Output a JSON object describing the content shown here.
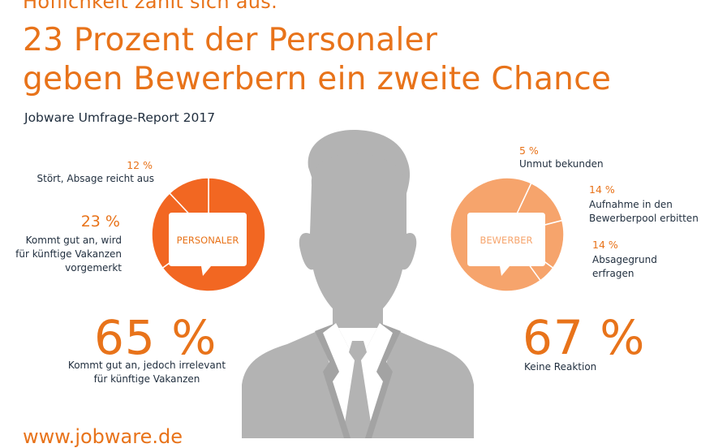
{
  "header": {
    "cut_line": "Höflichkeit zahlt sich aus.",
    "title_line1": "23 Prozent der Personaler",
    "title_line2": "geben Bewerbern ein zweite Chance",
    "subtitle": "Jobware Umfrage-Report 2017"
  },
  "footer": {
    "url": "www.jobware.de"
  },
  "colors": {
    "orange": "#e8731a",
    "orange_dark": "#f26722",
    "orange_light": "#f6a46c",
    "text_dark": "#1f2d3d",
    "person_gray": "#b3b3b3",
    "white": "#ffffff"
  },
  "chart_data": [
    {
      "type": "pie",
      "title": "PERSONALER",
      "slices": [
        {
          "value": 65,
          "pct_label": "65 %",
          "label_lines": [
            "Kommt gut an, jedoch irrelevant",
            "für künftige Vakanzen"
          ],
          "color": "#f26722"
        },
        {
          "value": 23,
          "pct_label": "23 %",
          "label_lines": [
            "Kommt gut an, wird",
            "für künftige Vakanzen",
            "vorgemerkt"
          ],
          "color": "#f26722"
        },
        {
          "value": 12,
          "pct_label": "12 %",
          "label_lines": [
            "Stört, Absage reicht aus"
          ],
          "color": "#f26722"
        }
      ]
    },
    {
      "type": "pie",
      "title": "BEWERBER",
      "slices": [
        {
          "value": 67,
          "pct_label": "67 %",
          "label_lines": [
            "Keine Reaktion"
          ],
          "color": "#f6a46c"
        },
        {
          "value": 14,
          "pct_label": "14 %",
          "label_lines": [
            "Absagegrund",
            "erfragen"
          ],
          "color": "#f6a46c"
        },
        {
          "value": 14,
          "pct_label": "14 %",
          "label_lines": [
            "Aufnahme in den",
            "Bewerberpool erbitten"
          ],
          "color": "#f6a46c"
        },
        {
          "value": 5,
          "pct_label": "5 %",
          "label_lines": [
            "Unmut bekunden"
          ],
          "color": "#f6a46c"
        }
      ]
    }
  ]
}
